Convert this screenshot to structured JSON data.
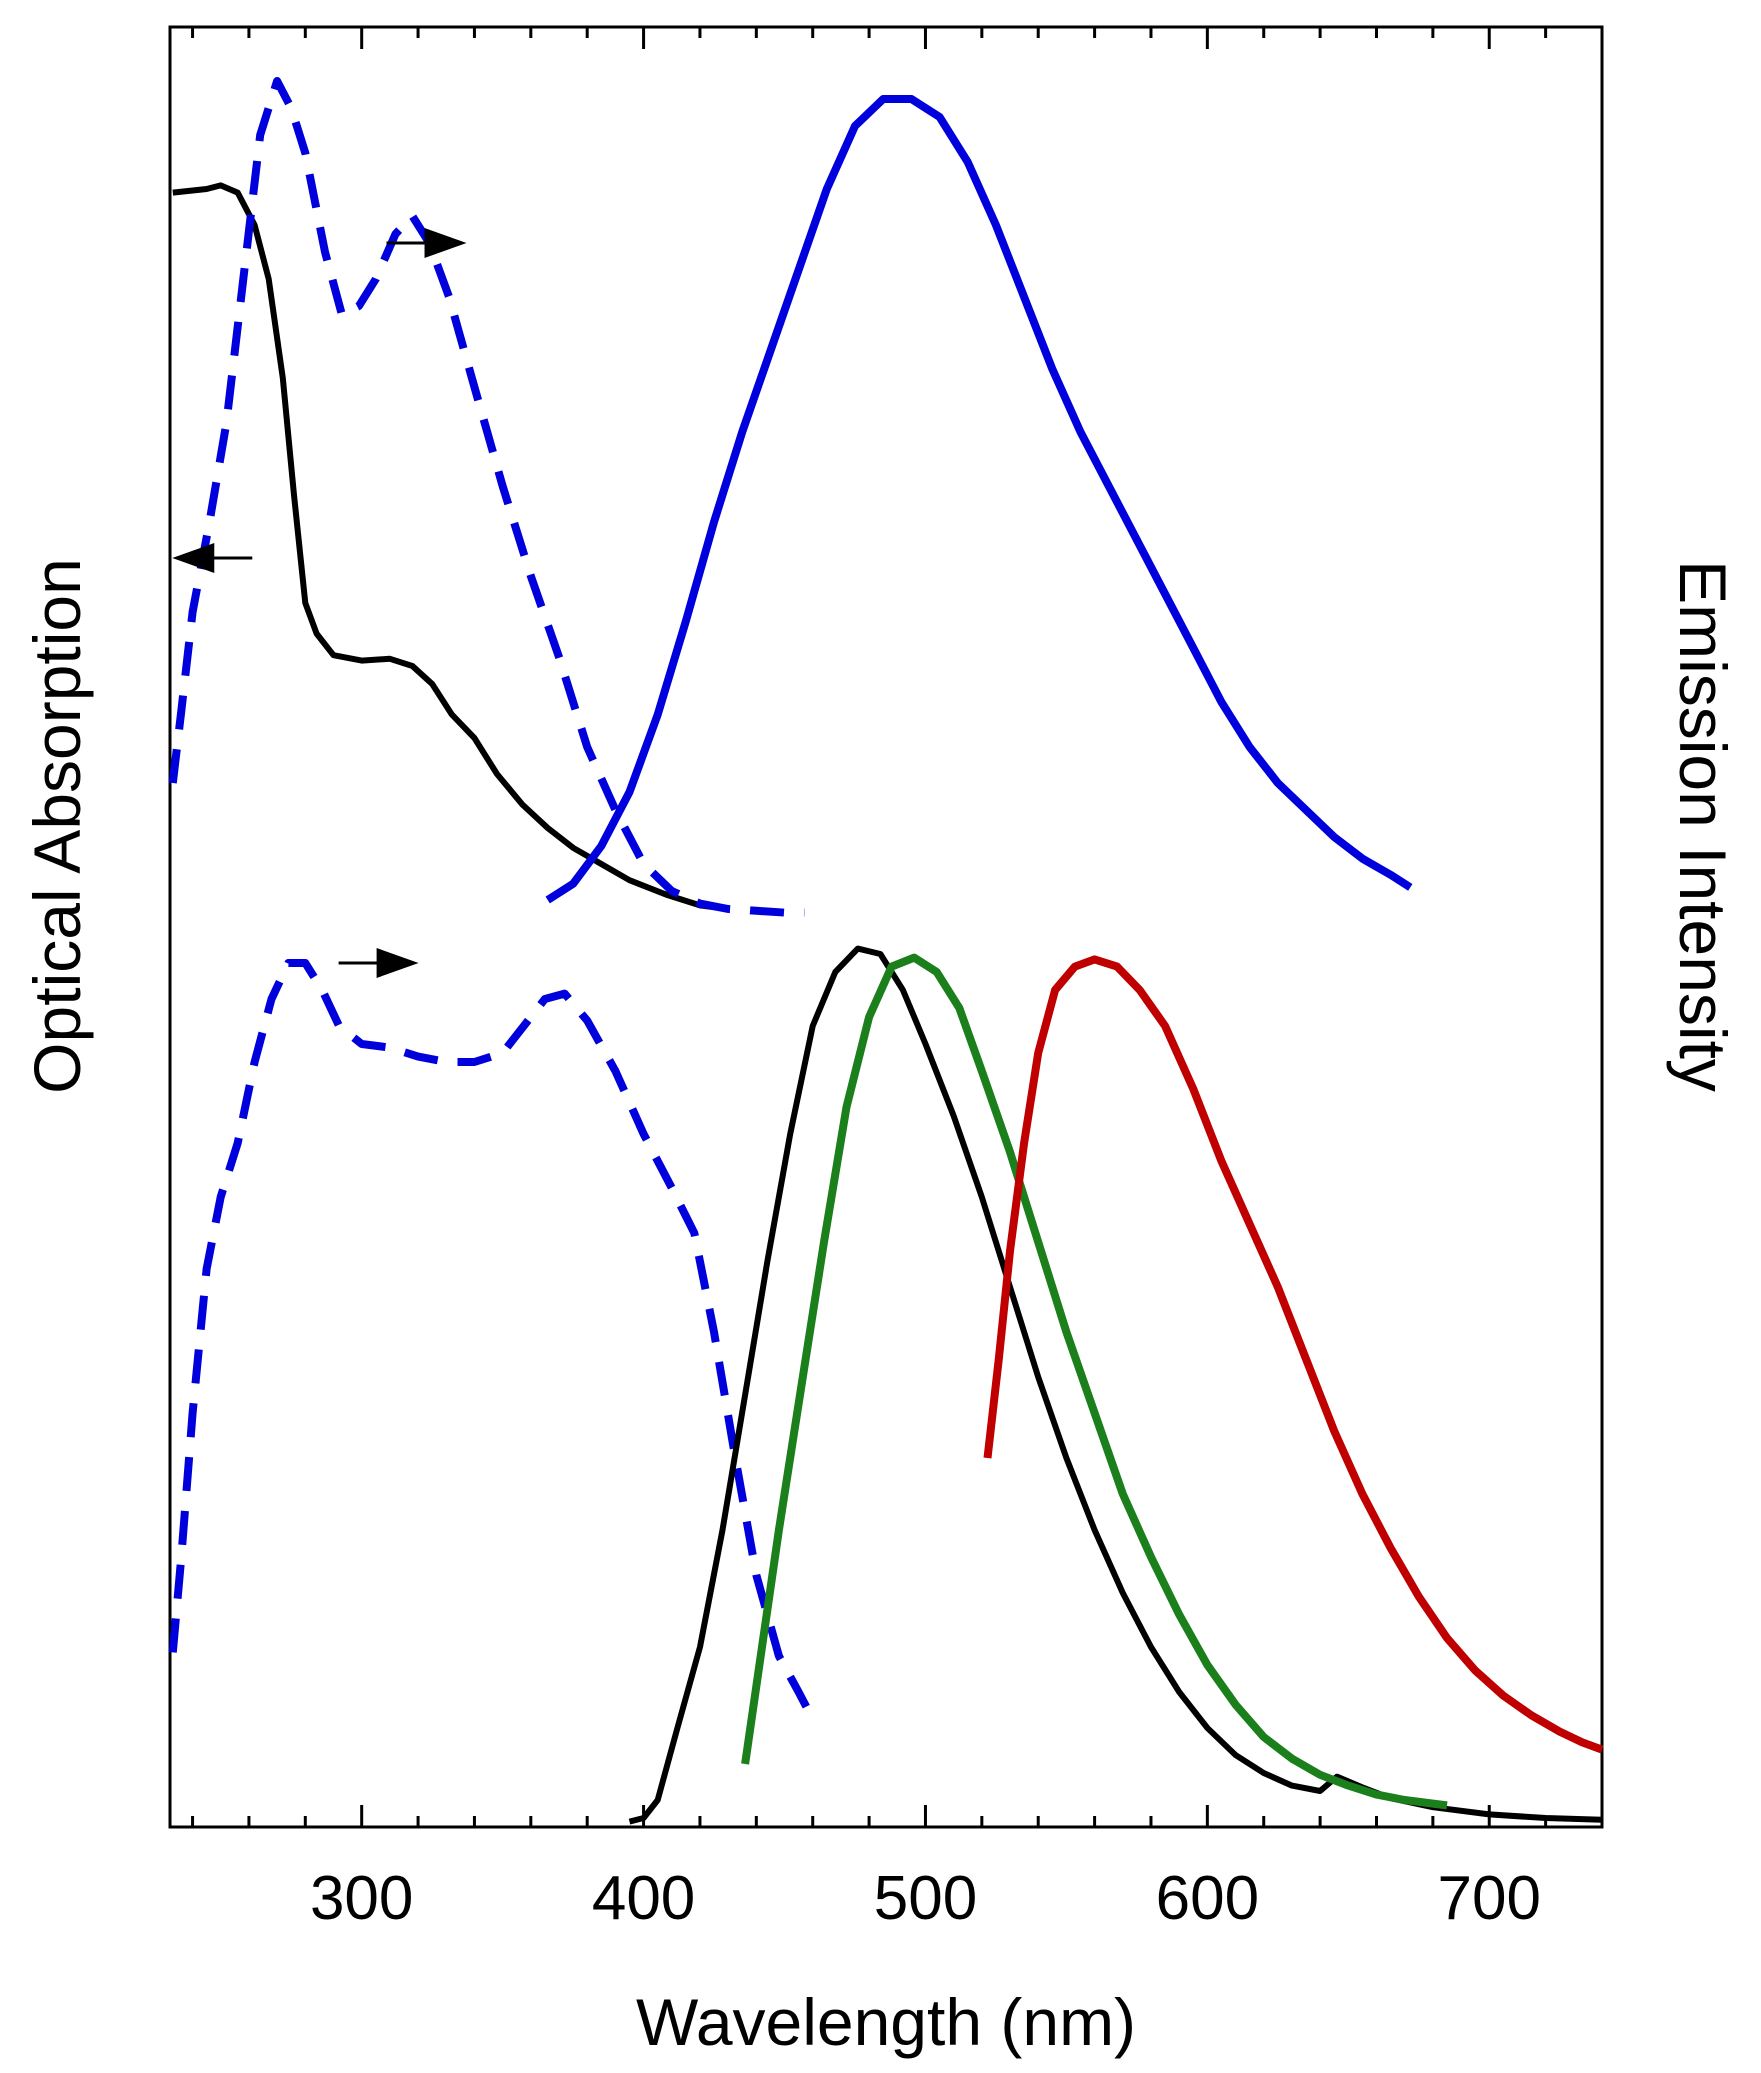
{
  "chart_data": {
    "type": "line",
    "title": "",
    "xlabel": "Wavelength (nm)",
    "ylabel_left": "Optical Absorption",
    "ylabel_right": "Emission Intensity",
    "xlim": [
      232,
      740
    ],
    "ylim": [
      0,
      100
    ],
    "xticks_major": [
      300,
      400,
      500,
      600,
      700
    ],
    "xticks_minor": [
      240,
      260,
      280,
      320,
      340,
      360,
      380,
      420,
      440,
      460,
      480,
      520,
      540,
      560,
      580,
      620,
      640,
      660,
      680,
      720
    ],
    "legend": "none",
    "grid": false,
    "colors": {
      "black": "#000000",
      "blue": "#0000dd",
      "green": "#1b7f1b",
      "red": "#c00000"
    },
    "series": [
      {
        "name": "top-absorption",
        "panel": "top",
        "color": "#000000",
        "style": "solid",
        "points": [
          [
            233,
            90.8
          ],
          [
            245,
            91.0
          ],
          [
            250,
            91.2
          ],
          [
            256,
            90.8
          ],
          [
            262,
            89.0
          ],
          [
            267,
            86.0
          ],
          [
            272,
            80.5
          ],
          [
            276,
            74.0
          ],
          [
            280,
            68.0
          ],
          [
            284,
            66.3
          ],
          [
            290,
            65.1
          ],
          [
            300,
            64.8
          ],
          [
            310,
            64.9
          ],
          [
            318,
            64.5
          ],
          [
            325,
            63.5
          ],
          [
            332,
            61.8
          ],
          [
            340,
            60.5
          ],
          [
            348,
            58.5
          ],
          [
            357,
            56.8
          ],
          [
            366,
            55.5
          ],
          [
            375,
            54.4
          ],
          [
            385,
            53.5
          ],
          [
            395,
            52.6
          ],
          [
            408,
            51.8
          ],
          [
            420,
            51.2
          ],
          [
            430,
            51.0
          ]
        ]
      },
      {
        "name": "top-excitation",
        "panel": "top",
        "color": "#0000dd",
        "style": "dashed",
        "points": [
          [
            233,
            58.0
          ],
          [
            236,
            62.0
          ],
          [
            240,
            67.5
          ],
          [
            246,
            72.5
          ],
          [
            252,
            78.0
          ],
          [
            258,
            86.0
          ],
          [
            264,
            94.0
          ],
          [
            270,
            97.0
          ],
          [
            275,
            95.5
          ],
          [
            280,
            93.0
          ],
          [
            287,
            87.5
          ],
          [
            293,
            84.0
          ],
          [
            299,
            84.5
          ],
          [
            305,
            86.0
          ],
          [
            312,
            88.5
          ],
          [
            318,
            89.5
          ],
          [
            324,
            88.0
          ],
          [
            331,
            85.0
          ],
          [
            340,
            80.0
          ],
          [
            350,
            74.5
          ],
          [
            360,
            69.5
          ],
          [
            370,
            65.0
          ],
          [
            380,
            60.0
          ],
          [
            390,
            56.5
          ],
          [
            400,
            53.5
          ],
          [
            410,
            52.0
          ],
          [
            420,
            51.3
          ],
          [
            430,
            51.0
          ],
          [
            440,
            50.9
          ],
          [
            450,
            50.8
          ],
          [
            457,
            50.8
          ]
        ]
      },
      {
        "name": "top-emission",
        "panel": "top",
        "color": "#0000dd",
        "style": "solid",
        "points": [
          [
            366,
            51.5
          ],
          [
            375,
            52.4
          ],
          [
            385,
            54.5
          ],
          [
            395,
            57.5
          ],
          [
            405,
            61.8
          ],
          [
            415,
            67.0
          ],
          [
            425,
            72.5
          ],
          [
            435,
            77.5
          ],
          [
            445,
            82.0
          ],
          [
            455,
            86.5
          ],
          [
            465,
            91.0
          ],
          [
            475,
            94.5
          ],
          [
            485,
            96.0
          ],
          [
            495,
            96.0
          ],
          [
            505,
            95.0
          ],
          [
            515,
            92.5
          ],
          [
            525,
            89.0
          ],
          [
            535,
            85.0
          ],
          [
            545,
            81.0
          ],
          [
            555,
            77.5
          ],
          [
            565,
            74.5
          ],
          [
            575,
            71.5
          ],
          [
            585,
            68.5
          ],
          [
            595,
            65.5
          ],
          [
            605,
            62.5
          ],
          [
            615,
            60.0
          ],
          [
            625,
            58.0
          ],
          [
            635,
            56.5
          ],
          [
            645,
            55.0
          ],
          [
            655,
            53.8
          ],
          [
            665,
            52.9
          ],
          [
            672,
            52.2
          ]
        ]
      },
      {
        "name": "bottom-excitation",
        "panel": "bottom",
        "color": "#0000dd",
        "style": "dashed",
        "points": [
          [
            233,
            9.7
          ],
          [
            236,
            15.0
          ],
          [
            240,
            23.0
          ],
          [
            245,
            31.0
          ],
          [
            250,
            35.0
          ],
          [
            256,
            38.0
          ],
          [
            262,
            42.5
          ],
          [
            268,
            46.0
          ],
          [
            274,
            48.0
          ],
          [
            280,
            48.0
          ],
          [
            286,
            46.5
          ],
          [
            292,
            44.5
          ],
          [
            300,
            43.5
          ],
          [
            310,
            43.3
          ],
          [
            320,
            42.8
          ],
          [
            330,
            42.5
          ],
          [
            340,
            42.5
          ],
          [
            350,
            43.0
          ],
          [
            358,
            44.6
          ],
          [
            365,
            46.0
          ],
          [
            372,
            46.3
          ],
          [
            380,
            44.8
          ],
          [
            390,
            42.0
          ],
          [
            400,
            38.5
          ],
          [
            410,
            35.5
          ],
          [
            418,
            33.0
          ],
          [
            425,
            27.5
          ],
          [
            432,
            21.0
          ],
          [
            440,
            14.0
          ],
          [
            448,
            9.5
          ],
          [
            455,
            7.5
          ],
          [
            460,
            6.0
          ]
        ]
      },
      {
        "name": "bottom-emission-blue",
        "panel": "bottom",
        "color": "#000000",
        "style": "solid",
        "points": [
          [
            395,
            0.3
          ],
          [
            400,
            0.5
          ],
          [
            405,
            1.5
          ],
          [
            412,
            5.5
          ],
          [
            420,
            10.0
          ],
          [
            428,
            16.5
          ],
          [
            436,
            24.0
          ],
          [
            444,
            31.5
          ],
          [
            452,
            38.5
          ],
          [
            460,
            44.5
          ],
          [
            468,
            47.5
          ],
          [
            476,
            48.8
          ],
          [
            484,
            48.5
          ],
          [
            492,
            46.5
          ],
          [
            500,
            43.5
          ],
          [
            510,
            39.5
          ],
          [
            520,
            35.0
          ],
          [
            530,
            30.0
          ],
          [
            540,
            25.0
          ],
          [
            550,
            20.5
          ],
          [
            560,
            16.5
          ],
          [
            570,
            13.0
          ],
          [
            580,
            10.0
          ],
          [
            590,
            7.5
          ],
          [
            600,
            5.5
          ],
          [
            610,
            4.0
          ],
          [
            620,
            3.0
          ],
          [
            630,
            2.3
          ],
          [
            640,
            2.0
          ],
          [
            646,
            2.8
          ],
          [
            655,
            2.2
          ],
          [
            665,
            1.6
          ],
          [
            680,
            1.1
          ],
          [
            700,
            0.7
          ],
          [
            720,
            0.5
          ],
          [
            740,
            0.4
          ]
        ]
      },
      {
        "name": "bottom-emission-green",
        "panel": "bottom",
        "color": "#1b7f1b",
        "style": "solid",
        "points": [
          [
            436,
            3.5
          ],
          [
            442,
            10.0
          ],
          [
            448,
            16.5
          ],
          [
            456,
            24.5
          ],
          [
            464,
            32.5
          ],
          [
            472,
            40.0
          ],
          [
            480,
            45.0
          ],
          [
            488,
            47.8
          ],
          [
            496,
            48.3
          ],
          [
            504,
            47.5
          ],
          [
            512,
            45.5
          ],
          [
            520,
            42.0
          ],
          [
            530,
            37.5
          ],
          [
            540,
            32.5
          ],
          [
            550,
            27.5
          ],
          [
            560,
            23.0
          ],
          [
            570,
            18.5
          ],
          [
            580,
            15.0
          ],
          [
            590,
            11.8
          ],
          [
            600,
            9.0
          ],
          [
            610,
            6.8
          ],
          [
            620,
            5.0
          ],
          [
            630,
            3.8
          ],
          [
            640,
            2.9
          ],
          [
            650,
            2.3
          ],
          [
            660,
            1.8
          ],
          [
            670,
            1.5
          ],
          [
            680,
            1.3
          ],
          [
            685,
            1.2
          ]
        ]
      },
      {
        "name": "bottom-emission-red",
        "panel": "bottom",
        "color": "#c00000",
        "style": "solid",
        "points": [
          [
            522,
            20.5
          ],
          [
            526,
            26.0
          ],
          [
            530,
            32.0
          ],
          [
            535,
            38.0
          ],
          [
            540,
            43.0
          ],
          [
            546,
            46.5
          ],
          [
            553,
            47.8
          ],
          [
            560,
            48.2
          ],
          [
            568,
            47.8
          ],
          [
            576,
            46.5
          ],
          [
            585,
            44.5
          ],
          [
            595,
            41.0
          ],
          [
            605,
            37.0
          ],
          [
            615,
            33.5
          ],
          [
            625,
            30.0
          ],
          [
            635,
            26.0
          ],
          [
            645,
            22.0
          ],
          [
            655,
            18.5
          ],
          [
            665,
            15.5
          ],
          [
            675,
            12.8
          ],
          [
            685,
            10.5
          ],
          [
            695,
            8.7
          ],
          [
            705,
            7.3
          ],
          [
            715,
            6.2
          ],
          [
            725,
            5.3
          ],
          [
            733,
            4.7
          ],
          [
            740,
            4.3
          ]
        ]
      }
    ],
    "annotations": [
      {
        "type": "arrow",
        "direction": "right",
        "x": 323,
        "y": 88.0,
        "target_axis": "right"
      },
      {
        "type": "arrow",
        "direction": "left",
        "x": 247,
        "y": 70.5,
        "target_axis": "left"
      },
      {
        "type": "arrow",
        "direction": "right",
        "x": 306,
        "y": 48.0,
        "target_axis": "right"
      }
    ]
  }
}
